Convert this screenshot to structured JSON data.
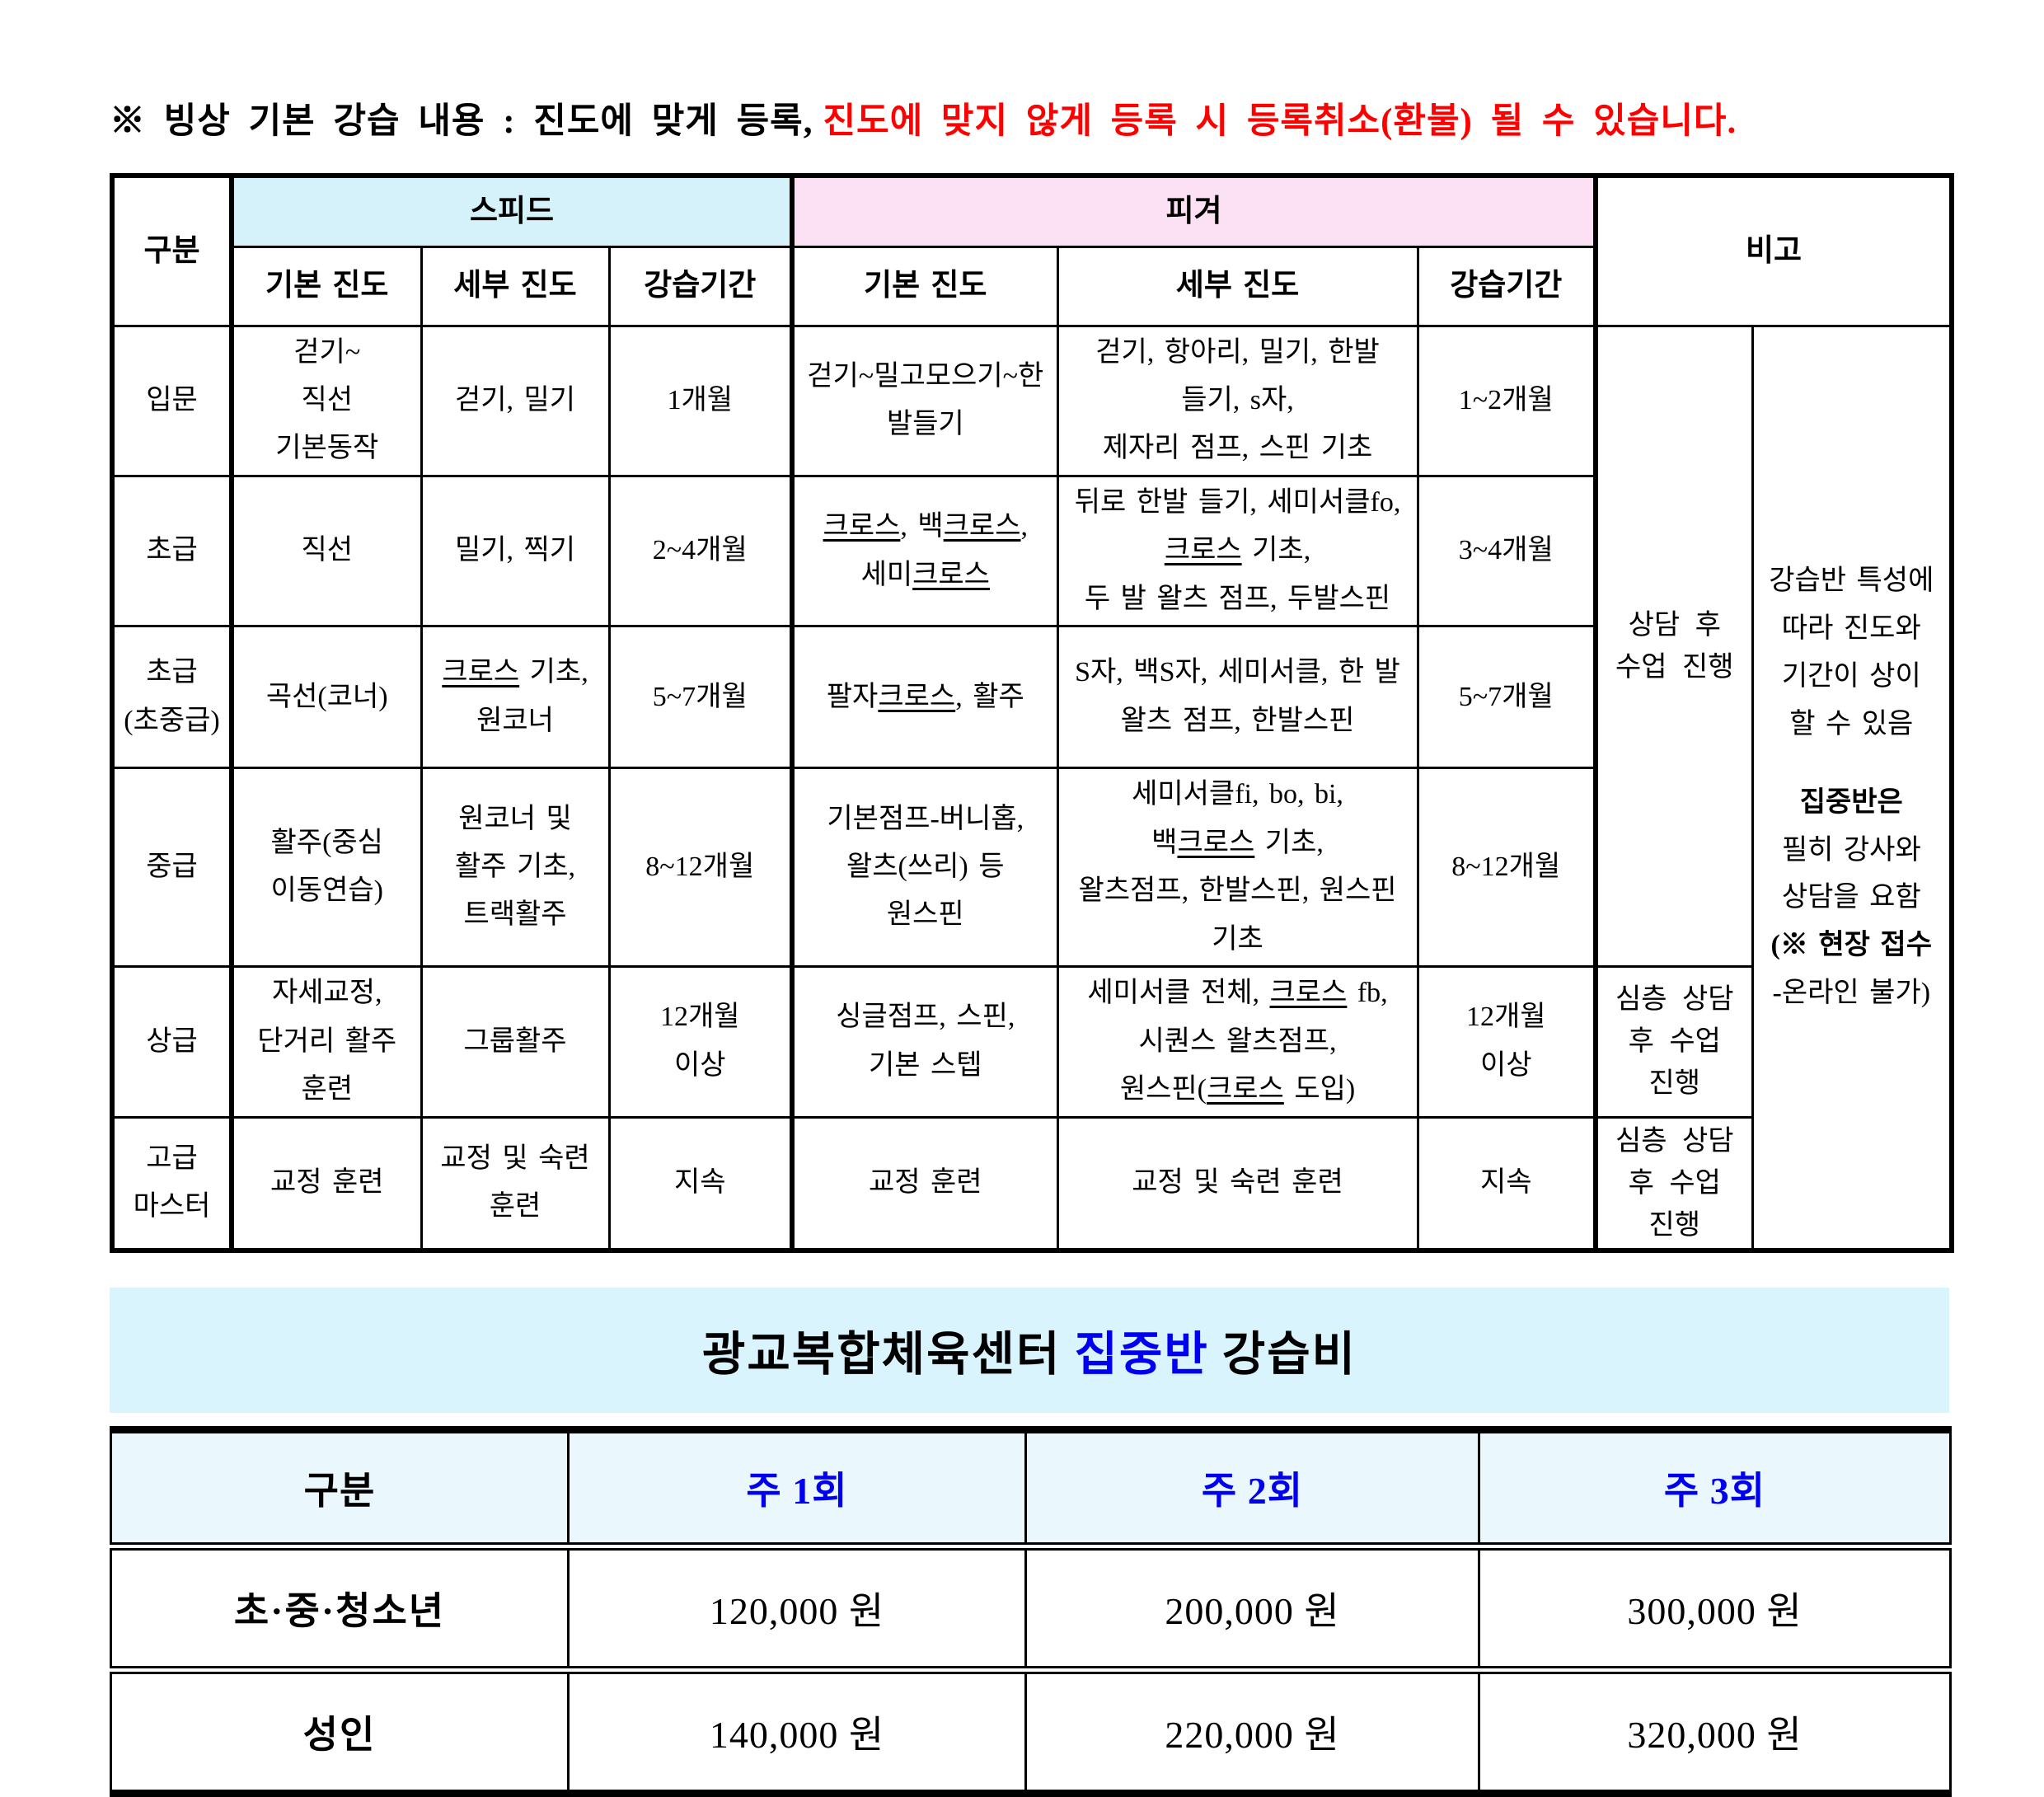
{
  "colors": {
    "speed_header_bg": "#D5F2FA",
    "figure_header_bg": "#FCE0F3",
    "banner_bg": "#D9F4FC",
    "price_header_bg": "#EAF7FD",
    "accent_blue": "#0000F0",
    "alert_red": "#FF0000"
  },
  "note": {
    "black_text": "※ 빙상 기본 강습 내용 : 진도에 맞게 등록,",
    "red_text": "진도에 맞지 않게 등록 시 등록취소(환불) 될 수 있습니다."
  },
  "main_table": {
    "header": {
      "gubun": "구분",
      "speed": "스피드",
      "figure": "피겨",
      "bigo": "비고",
      "sub": [
        "기본 진도",
        "세부 진도",
        "강습기간",
        "기본 진도",
        "세부 진도",
        "강습기간"
      ]
    },
    "rows": [
      {
        "level": [
          "입문"
        ],
        "speed_basic": [
          "걷기~",
          "직선",
          "기본동작"
        ],
        "speed_detail": [
          "걷기, 밀기"
        ],
        "speed_period": [
          "1개월"
        ],
        "figure_basic": [
          "걷기~밀고모으기~한",
          "발들기"
        ],
        "figure_detail": [
          "걷기, 항아리, 밀기, 한발",
          "들기, s자,",
          "제자리 점프, 스핀 기초"
        ],
        "figure_period": [
          "1~2개월"
        ]
      },
      {
        "level": [
          "초급"
        ],
        "speed_basic": [
          "직선"
        ],
        "speed_detail": [
          "밀기, 찍기"
        ],
        "speed_period": [
          "2~4개월"
        ],
        "figure_basic": [
          [
            {
              "t": "크로스",
              "u": true
            },
            {
              "t": ", 백"
            },
            {
              "t": "크로스",
              "u": true
            },
            {
              "t": ","
            }
          ],
          [
            {
              "t": "세미"
            },
            {
              "t": "크로스",
              "u": true
            }
          ]
        ],
        "figure_detail": [
          [
            "뒤로 한발 들기, 세미서클fo,"
          ],
          [
            {
              "t": "크로스",
              "u": true
            },
            {
              "t": " 기초,"
            }
          ],
          [
            "두 발 왈츠 점프, 두발스핀"
          ]
        ],
        "figure_period": [
          "3~4개월"
        ]
      },
      {
        "level": [
          "초급",
          "(초중급)"
        ],
        "speed_basic": [
          "곡선(코너)"
        ],
        "speed_detail": [
          [
            {
              "t": "크로스",
              "u": true
            },
            {
              "t": " 기초,"
            }
          ],
          [
            "원코너"
          ]
        ],
        "speed_period": [
          "5~7개월"
        ],
        "figure_basic": [
          [
            {
              "t": "팔자"
            },
            {
              "t": "크로스",
              "u": true
            },
            {
              "t": ", 활주"
            }
          ]
        ],
        "figure_detail": [
          "S자, 백S자, 세미서클, 한 발",
          "왈츠 점프, 한발스핀"
        ],
        "figure_period": [
          "5~7개월"
        ]
      },
      {
        "level": [
          "중급"
        ],
        "speed_basic": [
          "활주(중심",
          "이동연습)"
        ],
        "speed_detail": [
          "원코너 및",
          "활주 기초,",
          "트랙활주"
        ],
        "speed_period": [
          "8~12개월"
        ],
        "figure_basic": [
          "기본점프-버니홉,",
          "왈츠(쓰리) 등",
          "원스핀"
        ],
        "figure_detail": [
          [
            "세미서클fi, bo, bi,"
          ],
          [
            {
              "t": "백"
            },
            {
              "t": "크로스",
              "u": true
            },
            {
              "t": " 기초,"
            }
          ],
          [
            "왈츠점프, 한발스핀, 원스핀"
          ],
          [
            "기초"
          ]
        ],
        "figure_period": [
          "8~12개월"
        ]
      },
      {
        "level": [
          "상급"
        ],
        "speed_basic": [
          "자세교정,",
          "단거리 활주",
          "훈련"
        ],
        "speed_detail": [
          "그룹활주"
        ],
        "speed_period": [
          "12개월",
          "이상"
        ],
        "figure_basic": [
          "싱글점프, 스핀,",
          "기본 스텝"
        ],
        "figure_detail": [
          [
            {
              "t": "세미서클 전체, "
            },
            {
              "t": "크로스",
              "u": true
            },
            {
              "t": " fb,"
            }
          ],
          [
            "시퀀스 왈츠점프,"
          ],
          [
            {
              "t": "원스핀("
            },
            {
              "t": "크로스",
              "u": true
            },
            {
              "t": " 도입)"
            }
          ]
        ],
        "figure_period": [
          "12개월",
          "이상"
        ]
      },
      {
        "level": [
          "고급",
          "마스터"
        ],
        "speed_basic": [
          "교정 훈련"
        ],
        "speed_detail": [
          "교정 및 숙련",
          "훈련"
        ],
        "speed_period": [
          "지속"
        ],
        "figure_basic": [
          "교정 훈련"
        ],
        "figure_detail": [
          "교정 및 숙련 훈련"
        ],
        "figure_period": [
          "지속"
        ]
      }
    ],
    "remarks_left": [
      {
        "span": 4,
        "lines": [
          "상담 후",
          "수업 진행"
        ]
      },
      {
        "span": 1,
        "lines": [
          "심층 상담",
          "후 수업",
          "진행"
        ]
      },
      {
        "span": 1,
        "lines": [
          "심층 상담",
          "후 수업",
          "진행"
        ]
      }
    ],
    "remarks_right": {
      "span": 6,
      "lines": [
        [
          "강습반 특성에"
        ],
        [
          "따라 진도와"
        ],
        [
          "기간이 상이"
        ],
        [
          "할 수 있음"
        ],
        [
          ""
        ],
        [
          {
            "t": "집중반은",
            "b": true
          }
        ],
        [
          "필히 강사와"
        ],
        [
          "상담을 요함"
        ],
        [
          {
            "t": "(※ 현장 접수",
            "b": true
          }
        ],
        [
          "-온라인 불가)"
        ]
      ]
    }
  },
  "price_section": {
    "title_prefix": "광교복합체육센터",
    "title_highlight": "집중반",
    "title_suffix": "강습비",
    "table": {
      "headers": [
        "구분",
        "주 1회",
        "주 2회",
        "주 3회"
      ],
      "rows": [
        {
          "label": "초·중·청소년",
          "prices": [
            "120,000 원",
            "200,000 원",
            "300,000 원"
          ]
        },
        {
          "label": "성인",
          "prices": [
            "140,000 원",
            "220,000 원",
            "320,000 원"
          ]
        }
      ]
    }
  }
}
